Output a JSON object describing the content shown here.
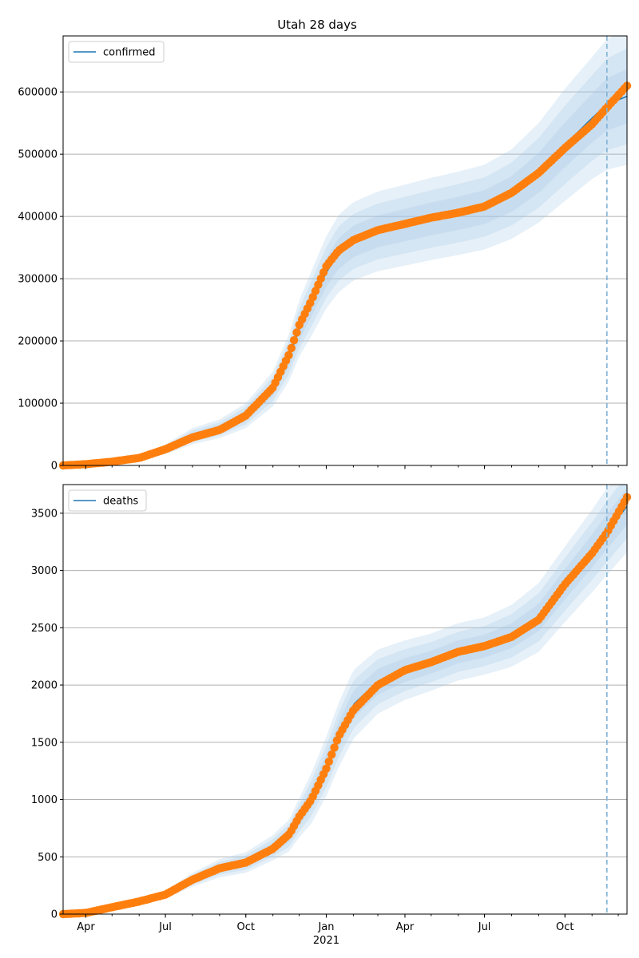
{
  "figure_title": "Utah 28 days",
  "colors": {
    "model_line": "#1f77b4",
    "observed": "#ff7f0e",
    "band": "#a6c8e6",
    "grid": "#b0b0b0",
    "forecast_marker": "#7fb2d6"
  },
  "x_axis": {
    "start": "2020-03-06",
    "end": "2021-12-11",
    "forecast_start": "2021-11-18",
    "ticks": [
      {
        "date": "2020-04-01",
        "label": "Apr"
      },
      {
        "date": "2020-07-01",
        "label": "Jul"
      },
      {
        "date": "2020-10-01",
        "label": "Oct"
      },
      {
        "date": "2021-01-01",
        "label": "Jan"
      },
      {
        "date": "2021-04-01",
        "label": "Apr"
      },
      {
        "date": "2021-07-01",
        "label": "Jul"
      },
      {
        "date": "2021-10-01",
        "label": "Oct"
      }
    ],
    "year_label": {
      "date": "2021-01-01",
      "label": "2021"
    }
  },
  "chart_data": [
    {
      "type": "line",
      "name": "confirmed",
      "legend": "confirmed",
      "legend_position": "top-left",
      "grid": "horizontal",
      "ylim": [
        0,
        690000
      ],
      "yticks": [
        0,
        100000,
        200000,
        300000,
        400000,
        500000,
        600000
      ],
      "ytick_labels": [
        "0",
        "100000",
        "200000",
        "300000",
        "400000",
        "500000",
        "600000"
      ],
      "dates": [
        "2020-03-06",
        "2020-04-01",
        "2020-05-01",
        "2020-06-01",
        "2020-07-01",
        "2020-08-01",
        "2020-09-01",
        "2020-10-01",
        "2020-11-01",
        "2020-11-20",
        "2020-12-01",
        "2020-12-15",
        "2021-01-01",
        "2021-01-15",
        "2021-02-01",
        "2021-03-01",
        "2021-04-01",
        "2021-05-01",
        "2021-06-01",
        "2021-07-01",
        "2021-08-01",
        "2021-09-01",
        "2021-10-01",
        "2021-11-01",
        "2021-11-18",
        "2021-12-11"
      ],
      "observed": [
        0,
        2000,
        6000,
        12000,
        26000,
        45000,
        57000,
        80000,
        125000,
        180000,
        225000,
        265000,
        320000,
        345000,
        362000,
        378000,
        388000,
        398000,
        406000,
        416000,
        438000,
        470000,
        510000,
        548000,
        575000,
        610000
      ],
      "model": [
        0,
        2000,
        6000,
        12000,
        26000,
        47000,
        59000,
        80000,
        123000,
        175000,
        220000,
        260000,
        310000,
        340000,
        360000,
        376000,
        386000,
        396000,
        405000,
        415000,
        436000,
        470000,
        515000,
        558000,
        580000,
        593000
      ],
      "band_halfwidth": [
        0,
        500,
        1500,
        3000,
        8000,
        13000,
        15000,
        20000,
        28000,
        38000,
        45000,
        52000,
        58000,
        62000,
        63000,
        64000,
        65000,
        66000,
        67000,
        68000,
        72000,
        80000,
        90000,
        98000,
        105000,
        110000
      ]
    },
    {
      "type": "line",
      "name": "deaths",
      "legend": "deaths",
      "legend_position": "top-left",
      "grid": "horizontal",
      "ylim": [
        0,
        3750
      ],
      "yticks": [
        0,
        500,
        1000,
        1500,
        2000,
        2500,
        3000,
        3500
      ],
      "ytick_labels": [
        "0",
        "500",
        "1000",
        "1500",
        "2000",
        "2500",
        "3000",
        "3500"
      ],
      "dates": [
        "2020-03-06",
        "2020-04-01",
        "2020-05-01",
        "2020-06-01",
        "2020-07-01",
        "2020-08-01",
        "2020-09-01",
        "2020-10-01",
        "2020-11-01",
        "2020-11-20",
        "2020-12-01",
        "2020-12-15",
        "2021-01-01",
        "2021-01-15",
        "2021-02-01",
        "2021-03-01",
        "2021-04-01",
        "2021-05-01",
        "2021-06-01",
        "2021-07-01",
        "2021-08-01",
        "2021-09-01",
        "2021-10-01",
        "2021-11-01",
        "2021-11-18",
        "2021-12-11"
      ],
      "observed": [
        0,
        10,
        60,
        110,
        170,
        300,
        400,
        450,
        570,
        700,
        850,
        1000,
        1270,
        1550,
        1780,
        2000,
        2130,
        2200,
        2290,
        2340,
        2420,
        2570,
        2880,
        3150,
        3330,
        3640
      ],
      "model": [
        0,
        10,
        60,
        110,
        170,
        300,
        400,
        450,
        580,
        690,
        840,
        1010,
        1290,
        1560,
        1830,
        2030,
        2130,
        2200,
        2290,
        2340,
        2430,
        2590,
        2880,
        3170,
        3340,
        3560
      ],
      "band_halfwidth": [
        0,
        8,
        20,
        30,
        35,
        60,
        80,
        90,
        110,
        140,
        170,
        220,
        260,
        280,
        300,
        280,
        260,
        250,
        250,
        250,
        270,
        300,
        330,
        360,
        380,
        400
      ]
    }
  ]
}
